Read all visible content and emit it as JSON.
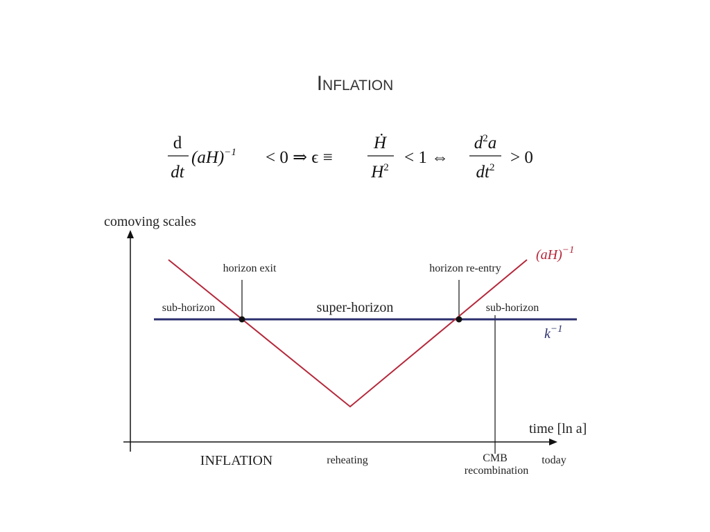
{
  "title": "Inflation",
  "equation": {
    "frac1_num": "d",
    "frac1_den": "dt",
    "term": "(aH)",
    "term_exp": "−1",
    "rel1": "< 0 ⇒ ϵ ≡",
    "frac2_num": "Ḣ",
    "frac2_den": "H",
    "frac2_den_exp": "2",
    "rel2": "< 1 ⇔",
    "frac3_num": "d",
    "frac3_num_exp": "2",
    "frac3_num_var": "a",
    "frac3_den": "dt",
    "frac3_den_exp": "2",
    "rel3": "> 0"
  },
  "diagram": {
    "y_axis_label": "comoving scales",
    "x_axis_label": "time [ln a]",
    "curve_label": "(aH)",
    "curve_label_exp": "−1",
    "k_label": "k",
    "k_label_exp": "−1",
    "horizon_exit": "horizon exit",
    "horizon_reentry": "horizon re-entry",
    "sub_horizon_left": "sub-horizon",
    "super_horizon": "super-horizon",
    "sub_horizon_right": "sub-horizon",
    "inflation_label": "INFLATION",
    "reheating": "reheating",
    "cmb": "CMB",
    "recombination": "recombination",
    "today": "today"
  }
}
